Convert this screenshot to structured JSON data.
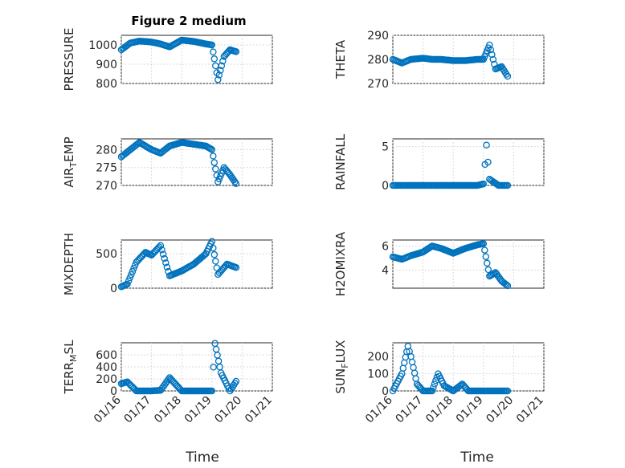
{
  "chart_data": [
    {
      "type": "scatter",
      "title": "Figure 2 medium",
      "ylabel": "PRESSURE",
      "ylim": [
        800,
        1050
      ],
      "yticks": [
        800,
        900,
        1000
      ],
      "color": "#0072BD",
      "x": [
        "01/16",
        "01/16.3",
        "01/16.6",
        "01/17",
        "01/17.3",
        "01/17.6",
        "01/18",
        "01/18.4",
        "01/18.8",
        "01/19",
        "01/19.2",
        "01/19.4",
        "01/19.6",
        "01/19.8"
      ],
      "y": [
        975,
        1010,
        1020,
        1015,
        1005,
        990,
        1025,
        1018,
        1005,
        1000,
        820,
        940,
        975,
        965
      ]
    },
    {
      "type": "scatter",
      "ylabel": "THETA",
      "ylim": [
        270,
        290
      ],
      "yticks": [
        270,
        280,
        290
      ],
      "x": [
        "01/16",
        "01/16.3",
        "01/16.6",
        "01/17",
        "01/17.3",
        "01/17.6",
        "01/18",
        "01/18.4",
        "01/18.8",
        "01/19",
        "01/19.2",
        "01/19.4",
        "01/19.6",
        "01/19.8"
      ],
      "y": [
        280,
        278.5,
        280,
        280.5,
        280,
        280,
        279.5,
        279.5,
        280,
        280,
        286,
        276,
        277,
        273
      ]
    },
    {
      "type": "scatter",
      "ylabel": "AIR_TEMP",
      "ylim": [
        270,
        283
      ],
      "yticks": [
        270,
        275,
        280
      ],
      "x": [
        "01/16",
        "01/16.3",
        "01/16.6",
        "01/17",
        "01/17.3",
        "01/17.6",
        "01/18",
        "01/18.4",
        "01/18.8",
        "01/19",
        "01/19.2",
        "01/19.4",
        "01/19.6",
        "01/19.8"
      ],
      "y": [
        278,
        280,
        282,
        280,
        279,
        281,
        282,
        281.5,
        281,
        280,
        271,
        275,
        273,
        270.5
      ]
    },
    {
      "type": "scatter",
      "ylabel": "RAINFALL",
      "ylim": [
        0,
        6
      ],
      "yticks": [
        0,
        5
      ],
      "x": [
        "01/16",
        "01/16.3",
        "01/16.6",
        "01/17",
        "01/17.3",
        "01/17.6",
        "01/18",
        "01/18.4",
        "01/18.8",
        "01/19",
        "01/19.1",
        "01/19.2",
        "01/19.5",
        "01/19.8"
      ],
      "y": [
        0,
        0,
        0,
        0,
        0,
        0,
        0,
        0,
        0,
        0.2,
        5.2,
        0.8,
        0,
        0
      ]
    },
    {
      "type": "scatter",
      "ylabel": "MIXDEPTH",
      "ylim": [
        0,
        700
      ],
      "yticks": [
        0,
        500
      ],
      "x": [
        "01/16",
        "01/16.2",
        "01/16.5",
        "01/16.8",
        "01/17",
        "01/17.3",
        "01/17.6",
        "01/18",
        "01/18.4",
        "01/18.8",
        "01/19",
        "01/19.2",
        "01/19.5",
        "01/19.8"
      ],
      "y": [
        20,
        60,
        380,
        520,
        480,
        620,
        180,
        250,
        350,
        500,
        680,
        200,
        350,
        300
      ]
    },
    {
      "type": "scatter",
      "ylabel": "H2OMIXRA",
      "ylim": [
        2.5,
        6.5
      ],
      "yticks": [
        4,
        6
      ],
      "x": [
        "01/16",
        "01/16.3",
        "01/16.6",
        "01/17",
        "01/17.3",
        "01/17.6",
        "01/18",
        "01/18.4",
        "01/18.8",
        "01/19",
        "01/19.2",
        "01/19.4",
        "01/19.6",
        "01/19.8"
      ],
      "y": [
        5.1,
        4.9,
        5.2,
        5.5,
        6.0,
        5.8,
        5.4,
        5.8,
        6.1,
        6.2,
        3.5,
        3.8,
        3.1,
        2.7
      ]
    },
    {
      "type": "scatter",
      "ylabel": "TERR_MSL",
      "ylim": [
        0,
        800
      ],
      "yticks": [
        0,
        200,
        400,
        600
      ],
      "x": [
        "01/16",
        "01/16.2",
        "01/16.5",
        "01/17",
        "01/17.3",
        "01/17.6",
        "01/18",
        "01/18.4",
        "01/18.8",
        "01/19",
        "01/19.1",
        "01/19.3",
        "01/19.6",
        "01/19.8"
      ],
      "y": [
        120,
        150,
        0,
        0,
        10,
        220,
        0,
        0,
        0,
        0,
        790,
        300,
        0,
        160
      ]
    },
    {
      "type": "scatter",
      "ylabel": "SUN_FLUX",
      "ylim": [
        0,
        280
      ],
      "yticks": [
        0,
        100,
        200
      ],
      "x": [
        "01/16",
        "01/16.3",
        "01/16.5",
        "01/16.6",
        "01/16.8",
        "01/17",
        "01/17.3",
        "01/17.5",
        "01/17.7",
        "01/18",
        "01/18.3",
        "01/18.5",
        "01/19",
        "01/19.8"
      ],
      "y": [
        0,
        100,
        260,
        200,
        40,
        0,
        0,
        100,
        30,
        0,
        40,
        0,
        0,
        0
      ]
    }
  ],
  "xaxis": {
    "ticks": [
      "01/16",
      "01/17",
      "01/18",
      "01/19",
      "01/20",
      "01/21"
    ],
    "label": "Time"
  }
}
